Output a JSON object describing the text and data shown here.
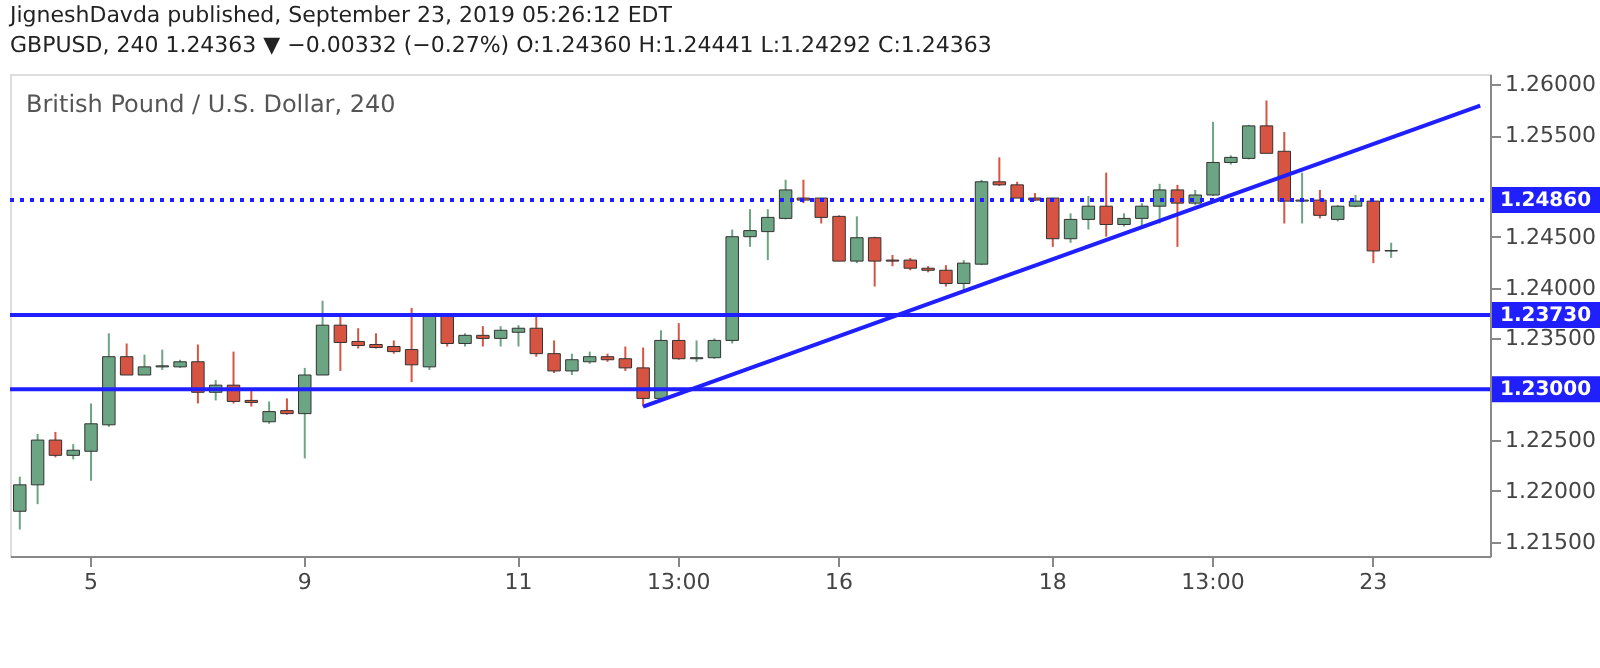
{
  "chart_data": {
    "type": "candlestick",
    "title": "British Pound / U.S. Dollar, 240",
    "annotations": [
      "JigneshDavda published, September 23, 2019 05:26:12 EDT",
      "GBPUSD, 240 1.24363 ▼ −0.00332 (−0.27%) O:1.24360 H:1.24441 L:1.24292 C:1.24363"
    ],
    "categories": [
      null,
      null,
      null,
      null,
      "5",
      null,
      null,
      null,
      null,
      null,
      null,
      null,
      null,
      null,
      null,
      null,
      "9",
      null,
      null,
      null,
      null,
      null,
      null,
      null,
      null,
      null,
      null,
      null,
      "11",
      null,
      null,
      null,
      null,
      null,
      null,
      null,
      null,
      "13:00",
      null,
      null,
      null,
      null,
      null,
      null,
      null,
      null,
      "16",
      null,
      null,
      null,
      null,
      null,
      null,
      null,
      null,
      null,
      null,
      null,
      "18",
      null,
      null,
      null,
      null,
      null,
      null,
      null,
      null,
      "13:00",
      null,
      null,
      null,
      null,
      null,
      null,
      null,
      null,
      "23",
      null,
      null,
      null,
      null,
      null,
      null
    ],
    "ohlc": [
      [
        1.218,
        1.2214,
        1.2162,
        1.2206
      ],
      [
        1.2206,
        1.2256,
        1.2187,
        1.225
      ],
      [
        1.225,
        1.2258,
        1.2233,
        1.2235
      ],
      [
        1.2235,
        1.2246,
        1.2231,
        1.224
      ],
      [
        1.2239,
        1.2286,
        1.221,
        1.2266
      ],
      [
        1.2265,
        1.2355,
        1.2263,
        1.2332
      ],
      [
        1.2332,
        1.2345,
        1.2314,
        1.2314
      ],
      [
        1.2314,
        1.2334,
        1.2314,
        1.2322
      ],
      [
        1.2322,
        1.2339,
        1.2319,
        1.2323
      ],
      [
        1.2322,
        1.2329,
        1.2321,
        1.2327
      ],
      [
        1.2327,
        1.2344,
        1.2286,
        1.2297
      ],
      [
        1.2297,
        1.2309,
        1.2289,
        1.2304
      ],
      [
        1.2304,
        1.2337,
        1.2286,
        1.2288
      ],
      [
        1.2289,
        1.23,
        1.2283,
        1.2287
      ],
      [
        1.2268,
        1.2288,
        1.2266,
        1.2278
      ],
      [
        1.2279,
        1.2291,
        1.2275,
        1.2276
      ],
      [
        1.2276,
        1.2321,
        1.2232,
        1.2314
      ],
      [
        1.2314,
        1.2387,
        1.2314,
        1.2363
      ],
      [
        1.2363,
        1.2375,
        1.2318,
        1.2346
      ],
      [
        1.2347,
        1.236,
        1.234,
        1.2343
      ],
      [
        1.2344,
        1.2355,
        1.234,
        1.2341
      ],
      [
        1.2342,
        1.2348,
        1.2335,
        1.2337
      ],
      [
        1.2339,
        1.238,
        1.2307,
        1.2324
      ],
      [
        1.2322,
        1.2375,
        1.2319,
        1.2373
      ],
      [
        1.2373,
        1.2374,
        1.2342,
        1.2345
      ],
      [
        1.2345,
        1.2355,
        1.2342,
        1.2353
      ],
      [
        1.2353,
        1.2362,
        1.2342,
        1.235
      ],
      [
        1.235,
        1.2362,
        1.2342,
        1.2358
      ],
      [
        1.2356,
        1.2363,
        1.2342,
        1.236
      ],
      [
        1.236,
        1.2371,
        1.2332,
        1.2335
      ],
      [
        1.2335,
        1.2348,
        1.2316,
        1.2318
      ],
      [
        1.2318,
        1.2335,
        1.2314,
        1.2329
      ],
      [
        1.2327,
        1.2337,
        1.2325,
        1.2332
      ],
      [
        1.2332,
        1.2335,
        1.2327,
        1.2329
      ],
      [
        1.233,
        1.2342,
        1.2318,
        1.2321
      ],
      [
        1.2321,
        1.2341,
        1.2283,
        1.2291
      ],
      [
        1.2291,
        1.2358,
        1.2289,
        1.2348
      ],
      [
        1.2348,
        1.2365,
        1.2329,
        1.233
      ],
      [
        1.233,
        1.2348,
        1.2327,
        1.2331
      ],
      [
        1.2331,
        1.235,
        1.233,
        1.2348
      ],
      [
        1.2348,
        1.2457,
        1.2345,
        1.245
      ],
      [
        1.245,
        1.2477,
        1.244,
        1.2456
      ],
      [
        1.2455,
        1.2477,
        1.2427,
        1.2469
      ],
      [
        1.2468,
        1.2506,
        1.2467,
        1.2496
      ],
      [
        1.2488,
        1.2506,
        1.2483,
        1.2486
      ],
      [
        1.2488,
        1.2488,
        1.2463,
        1.2469
      ],
      [
        1.247,
        1.2471,
        1.2426,
        1.2426
      ],
      [
        1.2426,
        1.247,
        1.2424,
        1.2449
      ],
      [
        1.2449,
        1.245,
        1.2401,
        1.2426
      ],
      [
        1.2427,
        1.2432,
        1.2421,
        1.2426
      ],
      [
        1.2427,
        1.2429,
        1.2417,
        1.2419
      ],
      [
        1.2419,
        1.2421,
        1.2415,
        1.2417
      ],
      [
        1.2417,
        1.2422,
        1.2401,
        1.2404
      ],
      [
        1.2404,
        1.2427,
        1.2398,
        1.2424
      ],
      [
        1.2423,
        1.2506,
        1.2422,
        1.2504
      ],
      [
        1.2504,
        1.2528,
        1.25,
        1.2501
      ],
      [
        1.2501,
        1.2504,
        1.2488,
        1.2488
      ],
      [
        1.2488,
        1.2493,
        1.2485,
        1.2486
      ],
      [
        1.2488,
        1.2488,
        1.244,
        1.2448
      ],
      [
        1.2448,
        1.2473,
        1.2444,
        1.2467
      ],
      [
        1.2467,
        1.249,
        1.2457,
        1.248
      ],
      [
        1.248,
        1.2513,
        1.245,
        1.2462
      ],
      [
        1.2462,
        1.2473,
        1.246,
        1.2468
      ],
      [
        1.2468,
        1.2483,
        1.246,
        1.248
      ],
      [
        1.248,
        1.2502,
        1.2463,
        1.2496
      ],
      [
        1.2496,
        1.2501,
        1.244,
        1.2483
      ],
      [
        1.2483,
        1.2496,
        1.2481,
        1.2491
      ],
      [
        1.2491,
        1.2563,
        1.249,
        1.2523
      ],
      [
        1.2523,
        1.253,
        1.2521,
        1.2528
      ],
      [
        1.2527,
        1.256,
        1.2526,
        1.2559
      ],
      [
        1.2559,
        1.2584,
        1.2532,
        1.2532
      ],
      [
        1.2534,
        1.2553,
        1.2463,
        1.2485
      ],
      [
        1.2485,
        1.2513,
        1.2463,
        1.2486
      ],
      [
        1.2486,
        1.2496,
        1.2468,
        1.2471
      ],
      [
        1.2467,
        1.2481,
        1.2465,
        1.248
      ],
      [
        1.248,
        1.2491,
        1.2479,
        1.2485
      ],
      [
        1.2485,
        1.2486,
        1.2424,
        1.2436
      ],
      [
        1.2436,
        1.24441,
        1.24292,
        1.24363
      ],
      null,
      null,
      null,
      null,
      null
    ],
    "colors": [
      "#6ba583",
      "#6ba583",
      "#d75442",
      "#6ba583",
      "#6ba583",
      "#6ba583",
      "#d75442",
      "#6ba583",
      "#6ba583",
      "#6ba583",
      "#d75442",
      "#6ba583",
      "#d75442",
      "#d75442",
      "#6ba583",
      "#d75442",
      "#6ba583",
      "#6ba583",
      "#d75442",
      "#d75442",
      "#d75442",
      "#d75442",
      "#d75442",
      "#6ba583",
      "#d75442",
      "#6ba583",
      "#d75442",
      "#6ba583",
      "#6ba583",
      "#d75442",
      "#d75442",
      "#6ba583",
      "#6ba583",
      "#d75442",
      "#d75442",
      "#d75442",
      "#6ba583",
      "#d75442",
      "#6ba583",
      "#6ba583",
      "#6ba583",
      "#6ba583",
      "#6ba583",
      "#6ba583",
      "#d75442",
      "#d75442",
      "#d75442",
      "#6ba583",
      "#d75442",
      "#d75442",
      "#d75442",
      "#d75442",
      "#d75442",
      "#6ba583",
      "#6ba583",
      "#d75442",
      "#d75442",
      "#d75442",
      "#d75442",
      "#6ba583",
      "#6ba583",
      "#d75442",
      "#6ba583",
      "#6ba583",
      "#6ba583",
      "#d75442",
      "#6ba583",
      "#6ba583",
      "#6ba583",
      "#6ba583",
      "#d75442",
      "#d75442",
      "#6ba583",
      "#d75442",
      "#6ba583",
      "#6ba583",
      "#d75442",
      "#6ba583",
      null,
      null,
      null,
      null,
      null
    ],
    "series": [
      {
        "type": "line",
        "color": "#1f1fff",
        "values": [
          null,
          null,
          null,
          null,
          null,
          null,
          null,
          null,
          null,
          null,
          null,
          null,
          null,
          null,
          null,
          null,
          null,
          null,
          null,
          null,
          null,
          null,
          null,
          null,
          null,
          null,
          null,
          null,
          null,
          null,
          null,
          null,
          null,
          null,
          null,
          1.2283,
          null,
          null,
          null,
          null,
          null,
          null,
          null,
          null,
          null,
          null,
          null,
          null,
          null,
          null,
          null,
          null,
          null,
          null,
          null,
          null,
          null,
          null,
          null,
          null,
          null,
          null,
          null,
          null,
          null,
          null,
          null,
          null,
          null,
          null,
          null,
          null,
          null,
          null,
          null,
          null,
          null,
          null,
          null,
          null,
          null,
          null,
          1.2579
        ]
      }
    ],
    "ylim": [
      1.2136,
      1.261
    ],
    "yticks": [
      {
        "value": 1.215,
        "label": "1.21500"
      },
      {
        "value": 1.22,
        "label": "1.22000"
      },
      {
        "value": 1.225,
        "label": "1.22500"
      },
      {
        "value": 1.235,
        "label": "1.23500"
      },
      {
        "value": 1.24,
        "label": "1.24000"
      },
      {
        "value": 1.245,
        "label": "1.24500"
      },
      {
        "value": 1.255,
        "label": "1.25500"
      },
      {
        "value": 1.26,
        "label": "1.26000"
      }
    ],
    "ref_lines": [
      {
        "axis": "y",
        "value": 1.2486,
        "label": "1.24860",
        "color": "#1f1fff",
        "line_style": "dotted"
      },
      {
        "axis": "y",
        "value": 1.2373,
        "label": "1.23730",
        "color": "#1f1fff",
        "line_style": "solid"
      },
      {
        "axis": "y",
        "value": 1.23,
        "label": "1.23000",
        "color": "#1f1fff",
        "line_style": "solid"
      }
    ],
    "grid": false
  }
}
